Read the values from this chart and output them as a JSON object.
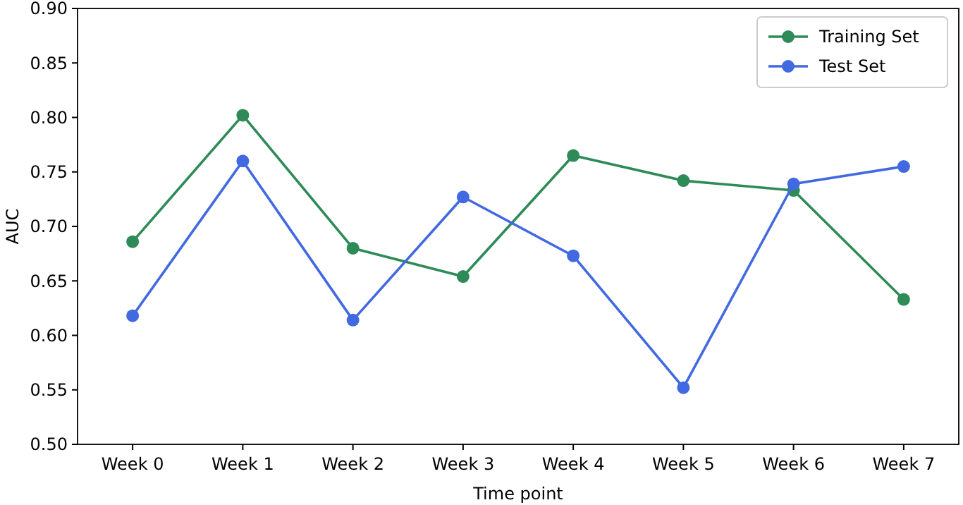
{
  "chart_data": {
    "type": "line",
    "xlabel": "Time point",
    "ylabel": "AUC",
    "categories": [
      "Week 0",
      "Week 1",
      "Week 2",
      "Week 3",
      "Week 4",
      "Week 5",
      "Week 6",
      "Week 7"
    ],
    "series": [
      {
        "name": "Training Set",
        "color": "#2e8b57",
        "values": [
          0.686,
          0.802,
          0.68,
          0.654,
          0.765,
          0.742,
          0.733,
          0.633
        ]
      },
      {
        "name": "Test Set",
        "color": "#4169e1",
        "values": [
          0.618,
          0.76,
          0.614,
          0.727,
          0.673,
          0.552,
          0.739,
          0.755
        ]
      }
    ],
    "ylim": [
      0.5,
      0.9
    ],
    "yticks": [
      {
        "value": 0.5,
        "label": "0.50"
      },
      {
        "value": 0.55,
        "label": "0.55"
      },
      {
        "value": 0.6,
        "label": "0.60"
      },
      {
        "value": 0.65,
        "label": "0.65"
      },
      {
        "value": 0.7,
        "label": "0.70"
      },
      {
        "value": 0.75,
        "label": "0.75"
      },
      {
        "value": 0.8,
        "label": "0.80"
      },
      {
        "value": 0.85,
        "label": "0.85"
      },
      {
        "value": 0.9,
        "label": "0.90"
      }
    ],
    "grid": false,
    "legend": "top right",
    "marker": "circle",
    "line_style": "solid"
  }
}
